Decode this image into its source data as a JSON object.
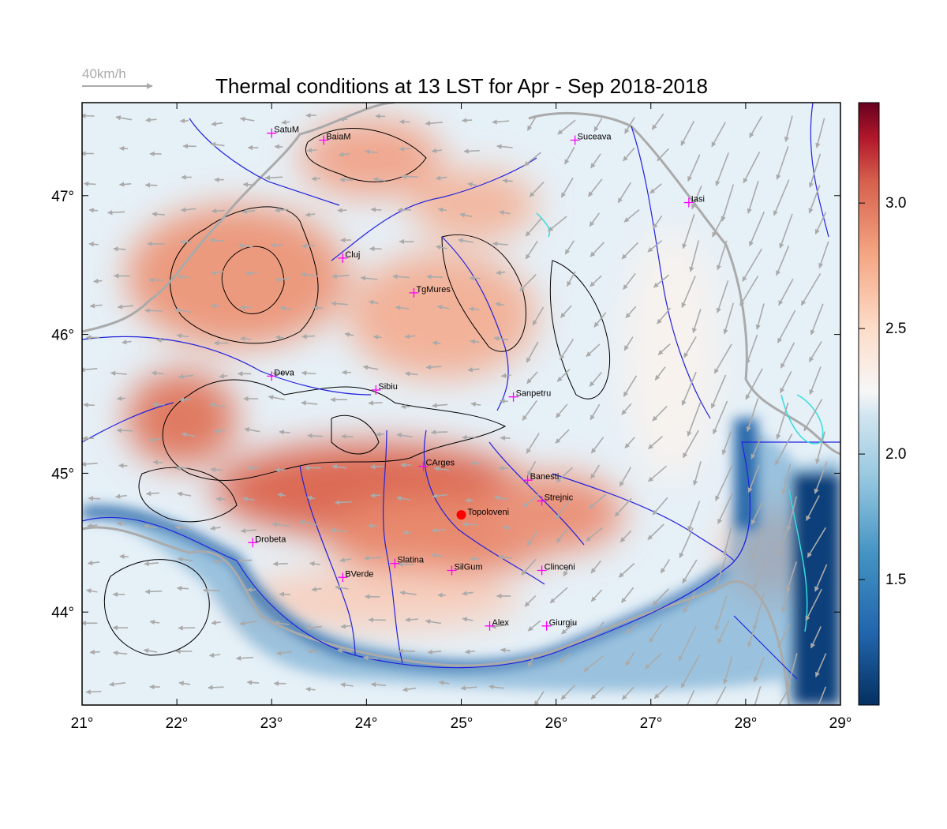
{
  "title": "Thermal conditions at 13 LST for Apr - Sep  2018-2018",
  "wind_scale": {
    "label": "40km/h"
  },
  "map": {
    "lon_range": [
      21,
      29
    ],
    "lat_range": [
      43.33,
      47.67
    ],
    "x_ticks": [
      "21°",
      "22°",
      "23°",
      "24°",
      "25°",
      "26°",
      "27°",
      "28°",
      "29°"
    ],
    "y_ticks": [
      "44°",
      "45°",
      "46°",
      "47°"
    ],
    "y_tick_values": [
      44,
      45,
      46,
      47
    ],
    "colors": {
      "frame": "#000000",
      "rivers": "#2222dd",
      "borders": "#aaaaaa",
      "contours": "#000000",
      "wind_arrows": "#aaaaaa",
      "city_marker": "#ff00ff",
      "highlight_point": "#ff0000",
      "lakes": "#33dddd"
    }
  },
  "colorbar": {
    "range": [
      1.0,
      3.4
    ],
    "tick_labels": [
      "1.5",
      "2.0",
      "2.5",
      "3.0"
    ],
    "tick_values": [
      1.5,
      2.0,
      2.5,
      3.0
    ],
    "colormap": "RdBu_r"
  },
  "cities": [
    {
      "name": "SatuM",
      "lon": 23.0,
      "lat": 47.45
    },
    {
      "name": "BaiaM",
      "lon": 23.55,
      "lat": 47.4
    },
    {
      "name": "Suceava",
      "lon": 26.2,
      "lat": 47.4
    },
    {
      "name": "Iasi",
      "lon": 27.4,
      "lat": 46.95
    },
    {
      "name": "Cluj",
      "lon": 23.75,
      "lat": 46.55
    },
    {
      "name": "TgMures",
      "lon": 24.5,
      "lat": 46.3
    },
    {
      "name": "Deva",
      "lon": 23.0,
      "lat": 45.7
    },
    {
      "name": "Sibiu",
      "lon": 24.1,
      "lat": 45.6
    },
    {
      "name": "Sanpetru",
      "lon": 25.55,
      "lat": 45.55
    },
    {
      "name": "CArges",
      "lon": 24.6,
      "lat": 45.05
    },
    {
      "name": "Banesti",
      "lon": 25.7,
      "lat": 44.95
    },
    {
      "name": "Strejnic",
      "lon": 25.85,
      "lat": 44.8
    },
    {
      "name": "Drobeta",
      "lon": 22.8,
      "lat": 44.5
    },
    {
      "name": "Slatina",
      "lon": 24.3,
      "lat": 44.35
    },
    {
      "name": "SilGum",
      "lon": 24.9,
      "lat": 44.3
    },
    {
      "name": "Clinceni",
      "lon": 25.85,
      "lat": 44.3
    },
    {
      "name": "BVerde",
      "lon": 23.75,
      "lat": 44.25
    },
    {
      "name": "Alex",
      "lon": 25.3,
      "lat": 43.9
    },
    {
      "name": "Giurgiu",
      "lon": 25.9,
      "lat": 43.9
    }
  ],
  "highlight": {
    "name": "Topoloveni",
    "lon": 25.0,
    "lat": 44.7
  }
}
